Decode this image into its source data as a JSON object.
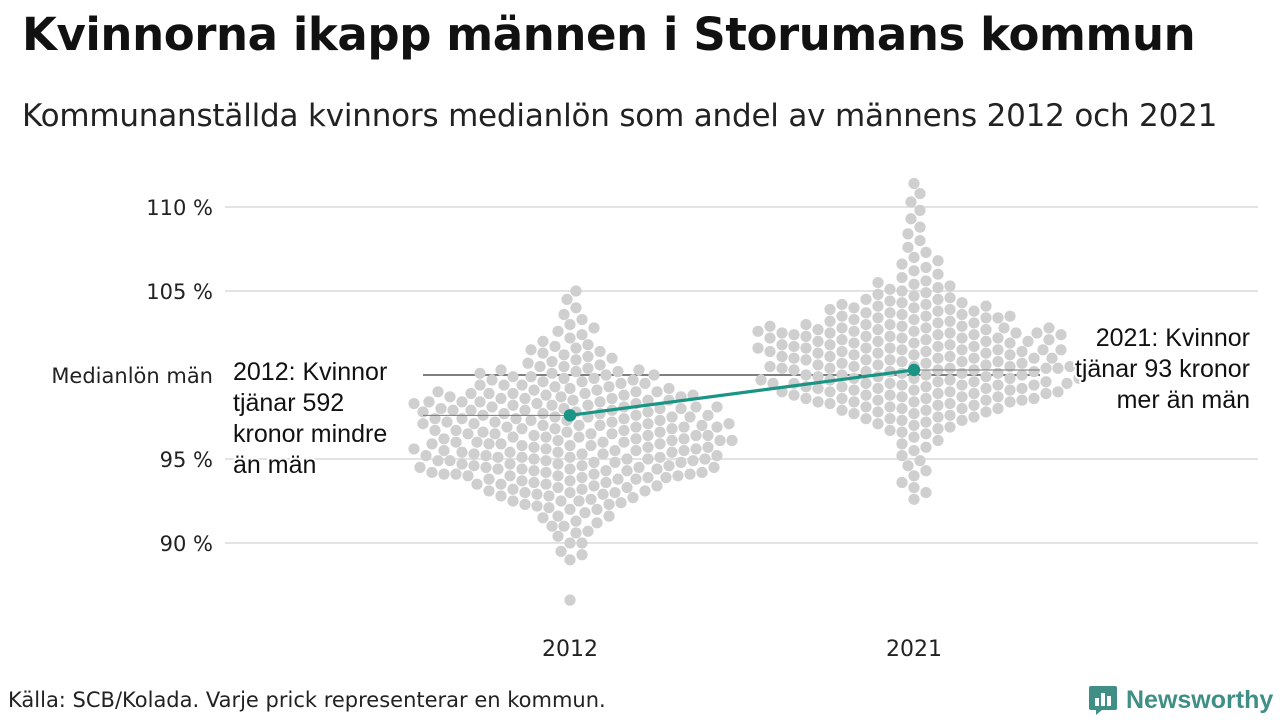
{
  "title": "Kvinnorna ikapp männen i Storumans kommun",
  "subtitle": "Kommunanställda kvinnors medianlön som andel av männens 2012 och 2021",
  "source": "Källa: SCB/Kolada. Varje prick representerar en kommun.",
  "brand": {
    "name": "Newsworthy",
    "icon": "newsworthy-logo-icon",
    "color": "#3f8f86"
  },
  "colors": {
    "accent": "#1a9484",
    "dots": "#cfcfcf",
    "grid": "#e3e3e3",
    "reference": "#333333"
  },
  "chart_data": {
    "type": "scatter",
    "subtype": "beeswarm",
    "ylim": [
      86,
      111.5
    ],
    "yticks": [
      90,
      95,
      105,
      110
    ],
    "ytick_labels": [
      "90 %",
      "95 %",
      "105 %",
      "110 %"
    ],
    "categories": [
      "2012",
      "2021"
    ],
    "reference_line": {
      "label": "Medianlön män",
      "value": 100
    },
    "highlight": {
      "values": [
        97.6,
        100.3
      ],
      "annotations": [
        {
          "year": "2012",
          "lines": [
            "2012: Kvinnor",
            "tjänar 592",
            "kronor mindre",
            "än män"
          ]
        },
        {
          "year": "2021",
          "lines": [
            "2021: Kvinnor",
            "tjänar 93 kronor",
            "mer än män"
          ]
        }
      ]
    },
    "series": [
      {
        "year": "2012",
        "n": 290,
        "values": [
          86.6,
          89.0,
          89.3,
          89.5,
          90.0,
          90.0,
          90.4,
          90.6,
          90.7,
          91.0,
          91.0,
          91.2,
          91.3,
          91.5,
          91.6,
          91.6,
          91.8,
          92.0,
          92.0,
          92.1,
          92.2,
          92.3,
          92.3,
          92.5,
          92.5,
          92.5,
          92.6,
          92.7,
          92.8,
          92.8,
          92.9,
          93.0,
          93.0,
          93.0,
          93.1,
          93.2,
          93.2,
          93.3,
          93.3,
          93.4,
          93.5,
          93.5,
          93.5,
          93.6,
          93.6,
          93.7,
          93.7,
          93.8,
          93.8,
          93.8,
          93.9,
          93.9,
          94.0,
          94.0,
          94.0,
          94.0,
          94.1,
          94.1,
          94.1,
          94.2,
          94.2,
          94.2,
          94.3,
          94.3,
          94.3,
          94.4,
          94.4,
          94.4,
          94.5,
          94.5,
          94.5,
          94.5,
          94.6,
          94.6,
          94.6,
          94.7,
          94.7,
          94.7,
          94.8,
          94.8,
          94.8,
          94.9,
          94.9,
          94.9,
          95.0,
          95.0,
          95.0,
          95.0,
          95.1,
          95.1,
          95.1,
          95.2,
          95.2,
          95.2,
          95.3,
          95.3,
          95.3,
          95.4,
          95.4,
          95.4,
          95.5,
          95.5,
          95.5,
          95.5,
          95.6,
          95.6,
          95.6,
          95.7,
          95.7,
          95.7,
          95.8,
          95.8,
          95.8,
          95.9,
          95.9,
          95.9,
          96.0,
          96.0,
          96.0,
          96.0,
          96.1,
          96.1,
          96.1,
          96.2,
          96.2,
          96.2,
          96.3,
          96.3,
          96.3,
          96.4,
          96.4,
          96.4,
          96.5,
          96.5,
          96.5,
          96.5,
          96.6,
          96.6,
          96.6,
          96.7,
          96.7,
          96.7,
          96.8,
          96.8,
          96.8,
          96.9,
          96.9,
          96.9,
          97.0,
          97.0,
          97.0,
          97.0,
          97.1,
          97.1,
          97.1,
          97.2,
          97.2,
          97.2,
          97.3,
          97.3,
          97.3,
          97.4,
          97.4,
          97.4,
          97.5,
          97.5,
          97.5,
          97.5,
          97.6,
          97.6,
          97.6,
          97.7,
          97.7,
          97.7,
          97.8,
          97.8,
          97.8,
          97.9,
          97.9,
          97.9,
          98.0,
          98.0,
          98.0,
          98.0,
          98.1,
          98.1,
          98.1,
          98.2,
          98.2,
          98.2,
          98.3,
          98.3,
          98.3,
          98.4,
          98.4,
          98.4,
          98.5,
          98.5,
          98.5,
          98.6,
          98.6,
          98.6,
          98.7,
          98.7,
          98.7,
          98.8,
          98.8,
          98.8,
          98.9,
          98.9,
          98.9,
          99.0,
          99.0,
          99.0,
          99.1,
          99.1,
          99.2,
          99.2,
          99.3,
          99.3,
          99.4,
          99.4,
          99.5,
          99.5,
          99.6,
          99.6,
          99.7,
          99.7,
          99.8,
          99.8,
          99.9,
          99.9,
          100.0,
          100.0,
          100.1,
          100.1,
          100.2,
          100.2,
          100.3,
          100.3,
          100.4,
          100.5,
          100.5,
          100.6,
          100.7,
          100.8,
          100.9,
          101.0,
          101.1,
          101.2,
          101.3,
          101.4,
          101.5,
          101.6,
          101.7,
          101.8,
          102.0,
          102.2,
          102.4,
          102.6,
          102.8,
          103.0,
          103.3,
          103.6,
          104.0,
          104.5,
          105.0,
          92.4,
          92.9,
          93.4,
          93.9,
          94.4,
          94.9,
          95.4,
          95.9,
          96.4,
          96.9,
          97.4,
          97.9,
          98.4,
          98.9,
          99.4,
          93.1,
          94.1,
          95.1,
          96.1,
          97.1,
          98.1
        ]
      },
      {
        "year": "2021",
        "n": 290,
        "values": [
          92.6,
          93.0,
          93.3,
          93.6,
          94.0,
          94.3,
          94.6,
          94.9,
          95.2,
          95.5,
          95.7,
          95.9,
          96.1,
          96.3,
          96.5,
          96.6,
          96.7,
          96.8,
          96.9,
          97.0,
          97.1,
          97.2,
          97.3,
          97.3,
          97.4,
          97.5,
          97.5,
          97.6,
          97.7,
          97.7,
          97.8,
          97.8,
          97.9,
          97.9,
          98.0,
          98.0,
          98.1,
          98.1,
          98.2,
          98.2,
          98.3,
          98.3,
          98.4,
          98.4,
          98.4,
          98.5,
          98.5,
          98.5,
          98.6,
          98.6,
          98.6,
          98.7,
          98.7,
          98.7,
          98.8,
          98.8,
          98.8,
          98.9,
          98.9,
          98.9,
          99.0,
          99.0,
          99.0,
          99.0,
          99.1,
          99.1,
          99.1,
          99.2,
          99.2,
          99.2,
          99.3,
          99.3,
          99.3,
          99.4,
          99.4,
          99.4,
          99.5,
          99.5,
          99.5,
          99.5,
          99.6,
          99.6,
          99.6,
          99.7,
          99.7,
          99.7,
          99.8,
          99.8,
          99.8,
          99.9,
          99.9,
          99.9,
          100.0,
          100.0,
          100.0,
          100.0,
          100.1,
          100.1,
          100.1,
          100.2,
          100.2,
          100.2,
          100.3,
          100.3,
          100.3,
          100.4,
          100.4,
          100.4,
          100.5,
          100.5,
          100.5,
          100.5,
          100.6,
          100.6,
          100.6,
          100.7,
          100.7,
          100.7,
          100.8,
          100.8,
          100.8,
          100.9,
          100.9,
          100.9,
          101.0,
          101.0,
          101.0,
          101.0,
          101.1,
          101.1,
          101.1,
          101.2,
          101.2,
          101.2,
          101.3,
          101.3,
          101.3,
          101.4,
          101.4,
          101.4,
          101.5,
          101.5,
          101.5,
          101.5,
          101.6,
          101.6,
          101.6,
          101.7,
          101.7,
          101.7,
          101.8,
          101.8,
          101.8,
          101.9,
          101.9,
          101.9,
          102.0,
          102.0,
          102.0,
          102.0,
          102.1,
          102.1,
          102.1,
          102.2,
          102.2,
          102.2,
          102.3,
          102.3,
          102.3,
          102.4,
          102.4,
          102.4,
          102.5,
          102.5,
          102.5,
          102.5,
          102.6,
          102.6,
          102.6,
          102.7,
          102.7,
          102.7,
          102.8,
          102.8,
          102.8,
          102.9,
          102.9,
          102.9,
          103.0,
          103.0,
          103.0,
          103.1,
          103.1,
          103.2,
          103.2,
          103.3,
          103.3,
          103.4,
          103.4,
          103.5,
          103.5,
          103.6,
          103.6,
          103.7,
          103.7,
          103.8,
          103.8,
          103.9,
          103.9,
          104.0,
          104.0,
          104.1,
          104.1,
          104.2,
          104.2,
          104.3,
          104.3,
          104.4,
          104.5,
          104.5,
          104.6,
          104.7,
          104.8,
          104.9,
          105.0,
          105.1,
          105.2,
          105.3,
          105.4,
          105.5,
          105.6,
          105.8,
          106.0,
          106.2,
          106.4,
          106.6,
          106.8,
          107.0,
          107.3,
          107.6,
          108.0,
          108.4,
          108.8,
          109.3,
          109.8,
          110.3,
          110.8,
          111.4,
          98.0,
          98.6,
          99.2,
          99.8,
          100.4,
          101.0,
          101.6,
          102.2,
          102.8,
          103.4,
          99.5,
          100.5,
          101.5,
          102.5,
          103.5,
          97.4,
          98.4,
          99.4,
          100.4,
          101.4,
          102.4
        ]
      }
    ]
  }
}
